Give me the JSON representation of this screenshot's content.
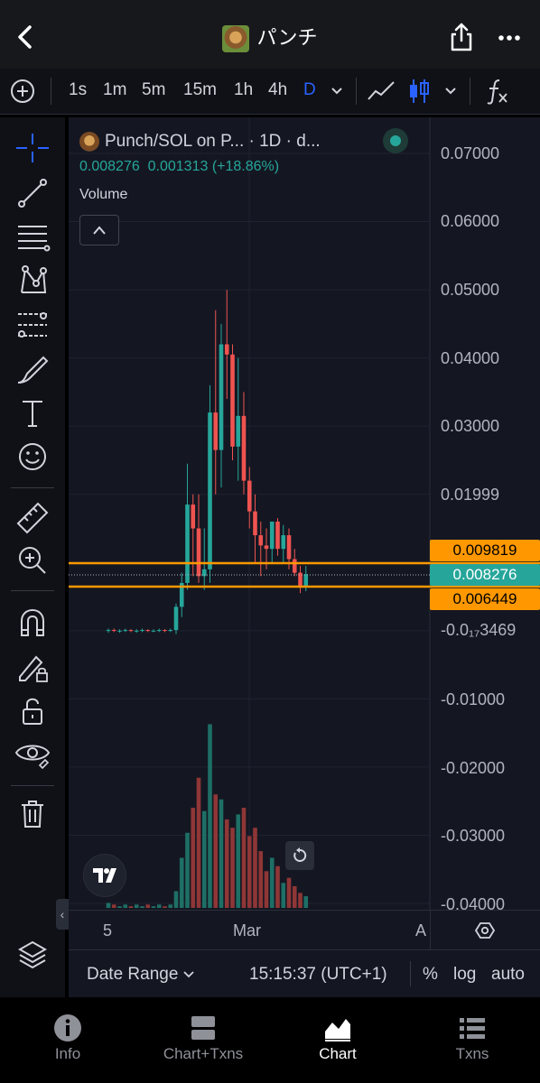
{
  "header": {
    "title": "パンチ"
  },
  "toolbar": {
    "timeframes": [
      "1s",
      "1m",
      "5m",
      "15m",
      "1h",
      "4h",
      "D"
    ],
    "active_timeframe": "D"
  },
  "legend": {
    "title": "Punch/SOL on P... · 1D · d...",
    "close": "0.008276",
    "change": "0.001313",
    "change_pct": "(+18.86%)",
    "volume_label": "Volume"
  },
  "price_axis": {
    "labels": [
      "0.07000",
      "0.06000",
      "0.05000",
      "0.04000",
      "0.03000",
      "0.01999",
      "-0.0₁₇3469",
      "-0.01000",
      "-0.02000",
      "-0.03000",
      "-0.04000"
    ]
  },
  "price_tags": [
    {
      "value": "0.009819",
      "color": "#ff9800"
    },
    {
      "value": "0.008276",
      "color": "#26a69a"
    },
    {
      "value": "0.006449",
      "color": "#ff9800"
    }
  ],
  "time_axis": {
    "labels": [
      "5",
      "Mar",
      "A"
    ]
  },
  "bottom": {
    "date_range": "Date Range",
    "clock": "15:15:37 (UTC+1)",
    "percent": "%",
    "log": "log",
    "auto": "auto"
  },
  "nav": {
    "items": [
      "Info",
      "Chart+Txns",
      "Chart",
      "Txns"
    ],
    "active": "Chart"
  },
  "colors": {
    "up": "#26a69a",
    "down": "#ef5350",
    "accent": "#2962ff",
    "hline": "#ff9800"
  },
  "chart_data": {
    "type": "candlestick",
    "title": "Punch/SOL on P... · 1D · d...",
    "ylim": [
      -0.04,
      0.07
    ],
    "candles": [
      {
        "o": 0.0,
        "h": 0.0003,
        "l": -0.0003,
        "c": 0.0001
      },
      {
        "o": 0.0001,
        "h": 0.0003,
        "l": -0.0002,
        "c": 0.0
      },
      {
        "o": 0.0,
        "h": 0.0002,
        "l": -0.0003,
        "c": 0.0
      },
      {
        "o": 0.0,
        "h": 0.0003,
        "l": -0.0002,
        "c": 0.0001
      },
      {
        "o": 0.0001,
        "h": 0.0002,
        "l": -0.0002,
        "c": 0.0
      },
      {
        "o": 0.0,
        "h": 0.0002,
        "l": -0.0003,
        "c": 0.0
      },
      {
        "o": 0.0,
        "h": 0.0003,
        "l": -0.0002,
        "c": 0.0001
      },
      {
        "o": 0.0001,
        "h": 0.0002,
        "l": -0.0002,
        "c": 0.0
      },
      {
        "o": 0.0,
        "h": 0.0002,
        "l": -0.0002,
        "c": 0.0
      },
      {
        "o": 0.0,
        "h": 0.0003,
        "l": -0.0002,
        "c": 0.0001
      },
      {
        "o": 0.0001,
        "h": 0.0002,
        "l": -0.0002,
        "c": 0.0
      },
      {
        "o": 0.0,
        "h": 0.0003,
        "l": -0.0002,
        "c": 0.0001
      },
      {
        "o": 0.0001,
        "h": 0.004,
        "l": -0.0005,
        "c": 0.0035
      },
      {
        "o": 0.0035,
        "h": 0.0085,
        "l": 0.002,
        "c": 0.007
      },
      {
        "o": 0.007,
        "h": 0.0245,
        "l": 0.006,
        "c": 0.0185
      },
      {
        "o": 0.0185,
        "h": 0.02,
        "l": 0.008,
        "c": 0.015
      },
      {
        "o": 0.015,
        "h": 0.02,
        "l": 0.007,
        "c": 0.008
      },
      {
        "o": 0.008,
        "h": 0.015,
        "l": 0.006,
        "c": 0.009
      },
      {
        "o": 0.009,
        "h": 0.036,
        "l": 0.007,
        "c": 0.032
      },
      {
        "o": 0.032,
        "h": 0.047,
        "l": 0.02,
        "c": 0.0265
      },
      {
        "o": 0.0265,
        "h": 0.045,
        "l": 0.021,
        "c": 0.042
      },
      {
        "o": 0.042,
        "h": 0.05,
        "l": 0.034,
        "c": 0.0405
      },
      {
        "o": 0.0405,
        "h": 0.042,
        "l": 0.025,
        "c": 0.027
      },
      {
        "o": 0.027,
        "h": 0.04,
        "l": 0.022,
        "c": 0.0315
      },
      {
        "o": 0.0315,
        "h": 0.035,
        "l": 0.02,
        "c": 0.022
      },
      {
        "o": 0.022,
        "h": 0.024,
        "l": 0.015,
        "c": 0.0175
      },
      {
        "o": 0.0175,
        "h": 0.02,
        "l": 0.01,
        "c": 0.014
      },
      {
        "o": 0.014,
        "h": 0.016,
        "l": 0.008,
        "c": 0.0125
      },
      {
        "o": 0.0125,
        "h": 0.015,
        "l": 0.009,
        "c": 0.012
      },
      {
        "o": 0.012,
        "h": 0.016,
        "l": 0.01,
        "c": 0.016
      },
      {
        "o": 0.016,
        "h": 0.0165,
        "l": 0.011,
        "c": 0.012
      },
      {
        "o": 0.012,
        "h": 0.0155,
        "l": 0.01,
        "c": 0.014
      },
      {
        "o": 0.014,
        "h": 0.015,
        "l": 0.009,
        "c": 0.0105
      },
      {
        "o": 0.0105,
        "h": 0.012,
        "l": 0.008,
        "c": 0.0085
      },
      {
        "o": 0.0085,
        "h": 0.0095,
        "l": 0.0055,
        "c": 0.0065
      },
      {
        "o": 0.0065,
        "h": 0.0095,
        "l": 0.0058,
        "c": 0.0083
      }
    ],
    "volume": [
      0.3,
      0.2,
      0.1,
      0.2,
      0.1,
      0.2,
      0.1,
      0.2,
      0.1,
      0.2,
      0.1,
      0.2,
      1.0,
      3.0,
      4.5,
      6.0,
      7.8,
      5.8,
      11.0,
      6.8,
      6.5,
      5.3,
      4.8,
      5.6,
      6.0,
      4.3,
      4.8,
      3.4,
      2.2,
      3.0,
      2.5,
      1.5,
      1.8,
      1.3,
      0.9,
      0.7
    ]
  }
}
